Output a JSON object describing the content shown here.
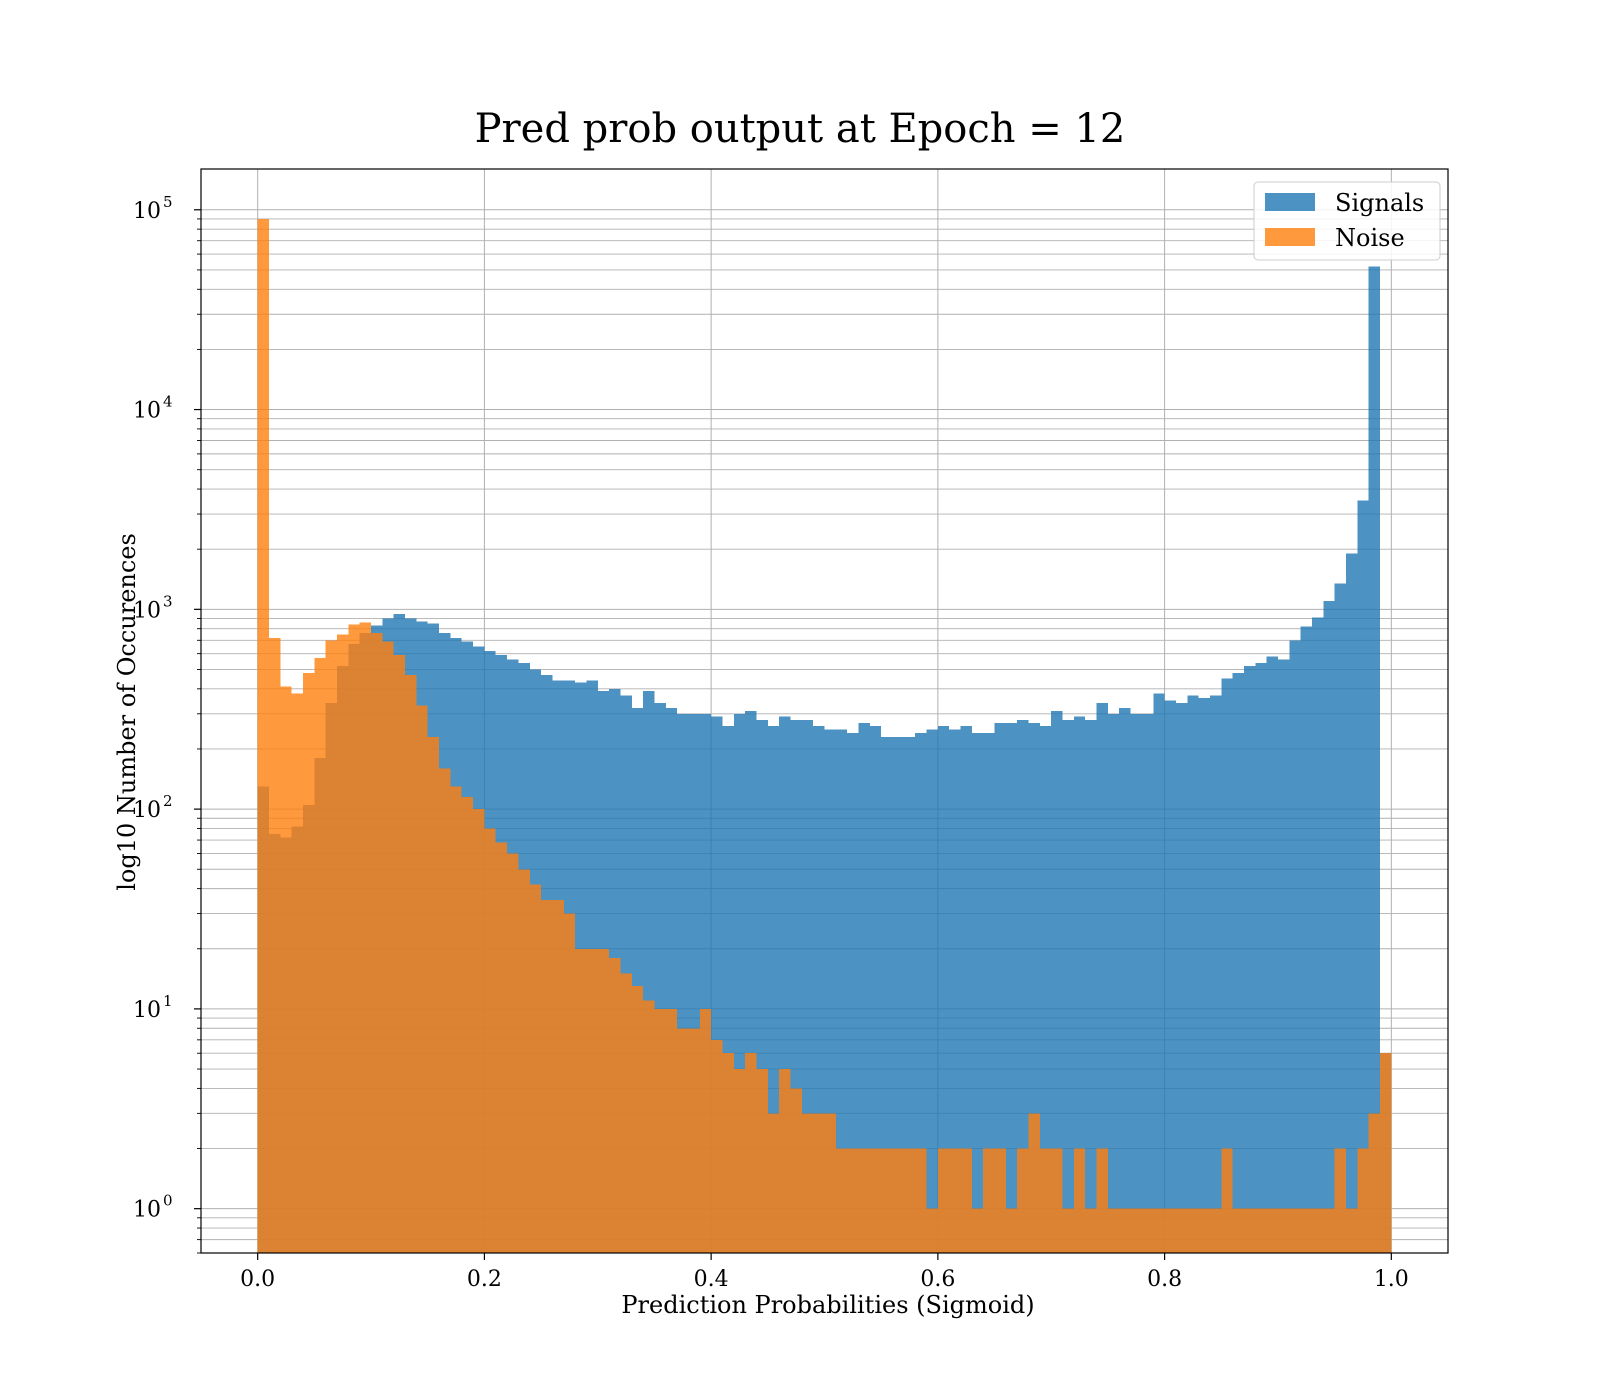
{
  "chart_data": {
    "type": "bar",
    "title": "Pred prob output at Epoch = 12",
    "xlabel": "Prediction Probabilities (Sigmoid)",
    "ylabel": "log10 Number of Occurences",
    "xlim": [
      -0.05,
      1.05
    ],
    "ylim": [
      0.6,
      160000
    ],
    "yscale": "log",
    "grid": true,
    "legend_position": "top-right",
    "x_ticks": [
      "0.0",
      "0.2",
      "0.4",
      "0.6",
      "0.8",
      "1.0"
    ],
    "x_tick_values": [
      0.0,
      0.2,
      0.4,
      0.6,
      0.8,
      1.0
    ],
    "y_ticks": [
      "10",
      "10",
      "10",
      "10",
      "10",
      "10"
    ],
    "y_tick_exponents": [
      "0",
      "1",
      "2",
      "3",
      "4",
      "5"
    ],
    "y_tick_values": [
      1,
      10,
      100,
      1000,
      10000,
      100000
    ],
    "bin_width": 0.01,
    "x_bin_starts": [
      0.0,
      0.01,
      0.02,
      0.03,
      0.04,
      0.05,
      0.06,
      0.07,
      0.08,
      0.09,
      0.1,
      0.11,
      0.12,
      0.13,
      0.14,
      0.15,
      0.16,
      0.17,
      0.18,
      0.19,
      0.2,
      0.21,
      0.22,
      0.23,
      0.24,
      0.25,
      0.26,
      0.27,
      0.28,
      0.29,
      0.3,
      0.31,
      0.32,
      0.33,
      0.34,
      0.35,
      0.36,
      0.37,
      0.38,
      0.39,
      0.4,
      0.41,
      0.42,
      0.43,
      0.44,
      0.45,
      0.46,
      0.47,
      0.48,
      0.49,
      0.5,
      0.51,
      0.52,
      0.53,
      0.54,
      0.55,
      0.56,
      0.57,
      0.58,
      0.59,
      0.6,
      0.61,
      0.62,
      0.63,
      0.64,
      0.65,
      0.66,
      0.67,
      0.68,
      0.69,
      0.7,
      0.71,
      0.72,
      0.73,
      0.74,
      0.75,
      0.76,
      0.77,
      0.78,
      0.79,
      0.8,
      0.81,
      0.82,
      0.83,
      0.84,
      0.85,
      0.86,
      0.87,
      0.88,
      0.89,
      0.9,
      0.91,
      0.92,
      0.93,
      0.94,
      0.95,
      0.96,
      0.97,
      0.98,
      0.99
    ],
    "series": [
      {
        "name": "Signals",
        "color": "#1f77b4",
        "values": [
          130,
          75,
          72,
          82,
          105,
          180,
          340,
          520,
          670,
          760,
          830,
          900,
          950,
          900,
          870,
          850,
          760,
          720,
          690,
          650,
          620,
          590,
          560,
          540,
          500,
          470,
          440,
          440,
          430,
          440,
          390,
          400,
          370,
          320,
          390,
          340,
          320,
          300,
          300,
          300,
          290,
          260,
          300,
          310,
          280,
          260,
          290,
          280,
          280,
          260,
          250,
          250,
          240,
          270,
          260,
          230,
          230,
          230,
          240,
          250,
          260,
          250,
          260,
          240,
          240,
          270,
          270,
          280,
          270,
          260,
          310,
          280,
          290,
          280,
          340,
          300,
          320,
          300,
          300,
          380,
          350,
          340,
          370,
          360,
          370,
          450,
          480,
          520,
          540,
          580,
          560,
          700,
          820,
          910,
          1100,
          1350,
          1900,
          3500,
          52000,
          6
        ]
      },
      {
        "name": "Noise",
        "color": "#ff7f0e",
        "values": [
          90000,
          720,
          410,
          380,
          480,
          570,
          700,
          750,
          840,
          860,
          760,
          690,
          590,
          470,
          330,
          230,
          160,
          130,
          115,
          100,
          80,
          68,
          60,
          50,
          42,
          35,
          35,
          30,
          20,
          20,
          20,
          18,
          15,
          13,
          11,
          10,
          10,
          8,
          8,
          10,
          7,
          6,
          5,
          6,
          5,
          3,
          5,
          4,
          3,
          3,
          3,
          2,
          2,
          2,
          2,
          2,
          2,
          2,
          2,
          1,
          2,
          2,
          2,
          1,
          2,
          2,
          1,
          2,
          3,
          2,
          2,
          1,
          2,
          1,
          2,
          1,
          1,
          1,
          1,
          1,
          1,
          1,
          1,
          1,
          1,
          2,
          1,
          1,
          1,
          1,
          1,
          1,
          1,
          1,
          1,
          2,
          1,
          2,
          3,
          6
        ]
      }
    ]
  }
}
